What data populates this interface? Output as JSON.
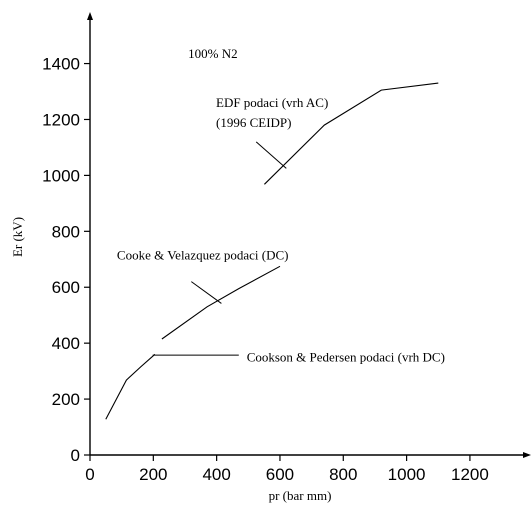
{
  "chart_data": {
    "type": "line",
    "xlabel": "pr (bar mm)",
    "ylabel": "Er (kV)",
    "xlim": [
      0,
      1350
    ],
    "ylim": [
      0,
      1550
    ],
    "x_ticks": [
      "0",
      "200",
      "400",
      "600",
      "800",
      "1000",
      "1200"
    ],
    "y_ticks": [
      "0",
      "200",
      "400",
      "600",
      "800",
      "1000",
      "1200",
      "1400"
    ],
    "grid": false,
    "legend": "none",
    "series": [
      {
        "points": [
          [
            551,
            968
          ],
          [
            740,
            1180
          ],
          [
            920,
            1305
          ],
          [
            1100,
            1330
          ]
        ]
      },
      {
        "points": [
          [
            227,
            415
          ],
          [
            370,
            530
          ],
          [
            470,
            595
          ],
          [
            600,
            675
          ]
        ]
      },
      {
        "points": [
          [
            50,
            128
          ],
          [
            115,
            268
          ],
          [
            160,
            315
          ],
          [
            205,
            360
          ]
        ]
      }
    ],
    "annotations": [
      {
        "lines": [
          "100% N2"
        ],
        "x": 310,
        "y": 1420,
        "anchor": null
      },
      {
        "lines": [
          "EDF podaci (vrh AC)",
          "(1996 CEIDP)"
        ],
        "x": 398,
        "y": 1245,
        "anchor": [
          620,
          1025
        ],
        "elbow": [
          525,
          1120
        ]
      },
      {
        "lines": [
          "Cooke & Velazquez podaci (DC)"
        ],
        "x": 85,
        "y": 700,
        "anchor": [
          415,
          542
        ],
        "elbow": [
          320,
          620
        ]
      },
      {
        "lines": [
          "Cookson & Pedersen podaci (vrh DC)"
        ],
        "x": 495,
        "y": 335,
        "anchor": [
          198,
          357
        ],
        "elbow": [
          470,
          357
        ]
      }
    ]
  }
}
